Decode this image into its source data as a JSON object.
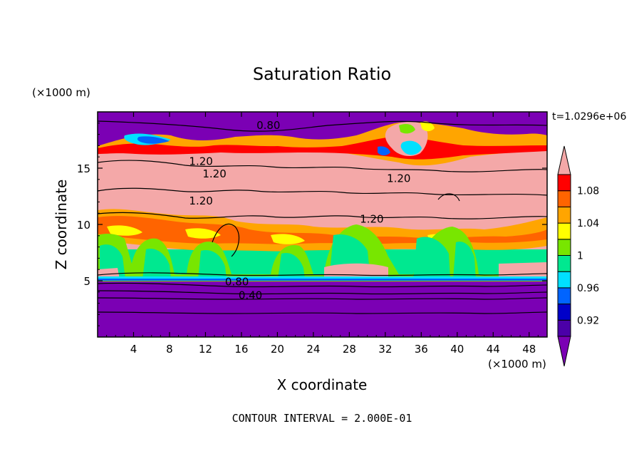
{
  "chart_data": {
    "type": "heatmap",
    "title": "Saturation Ratio",
    "xlabel": "X coordinate",
    "ylabel": "Z coordinate",
    "x_unit": "(×1000 m)",
    "y_unit": "(×1000 m)",
    "time_label": "t=1.0296e+06",
    "footer": "CONTOUR INTERVAL = 2.000E-01",
    "xlim": [
      0,
      50
    ],
    "ylim": [
      0,
      20
    ],
    "x_ticks": [
      4,
      8,
      12,
      16,
      20,
      24,
      28,
      32,
      36,
      40,
      44,
      48
    ],
    "y_ticks": [
      5,
      10,
      15
    ],
    "colorbar": {
      "levels": [
        0.9,
        0.92,
        0.94,
        0.96,
        0.98,
        1.0,
        1.02,
        1.04,
        1.06,
        1.08,
        1.1
      ],
      "tick_labels": [
        "0.92",
        "0.96",
        "1",
        "1.04",
        "1.08"
      ],
      "tick_values": [
        0.92,
        0.96,
        1.0,
        1.04,
        1.08
      ],
      "colors": [
        "#7b00b4",
        "#4b00a8",
        "#0000c8",
        "#0064ff",
        "#00e0ff",
        "#00e890",
        "#78e600",
        "#ffff00",
        "#ffa500",
        "#ff6400",
        "#ff0000",
        "#f4a8a8"
      ]
    },
    "contour_labels": [
      {
        "text": "0.80",
        "x": 19.0,
        "z": 18.6
      },
      {
        "text": "1.20",
        "x": 11.5,
        "z": 15.4
      },
      {
        "text": "1.20",
        "x": 13.0,
        "z": 14.3
      },
      {
        "text": "1.20",
        "x": 11.5,
        "z": 11.9
      },
      {
        "text": "1.20",
        "x": 33.5,
        "z": 13.9
      },
      {
        "text": "1.20",
        "x": 30.5,
        "z": 10.3
      },
      {
        "text": "0.80",
        "x": 15.5,
        "z": 4.7
      },
      {
        "text": "0.40",
        "x": 17.0,
        "z": 3.5
      }
    ]
  }
}
